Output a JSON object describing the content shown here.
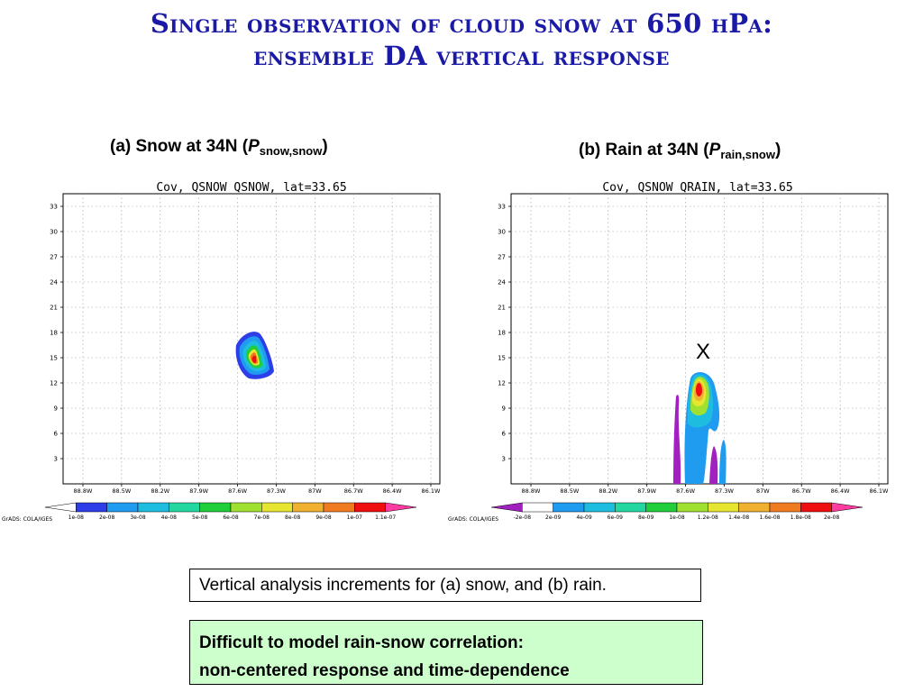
{
  "title": {
    "line1": "Single observation of cloud snow at 650 hPa:",
    "line2": "ensemble DA vertical response"
  },
  "panels": [
    {
      "heading": {
        "prefix": "(a) Snow at 34N (",
        "var": "P",
        "sub": "snow,snow",
        "suffix": ")"
      },
      "plot_title": "Cov, QSNOW QSNOW, lat=33.65",
      "colorbar": {
        "labels": [
          "1e-08",
          "2e-08",
          "3e-08",
          "4e-08",
          "5e-08",
          "6e-08",
          "7e-08",
          "8e-08",
          "9e-08",
          "1e-07",
          "1.1e-07"
        ],
        "colors": [
          "#ffffff",
          "#2d3de8",
          "#1f9bf0",
          "#1ebde0",
          "#22d8a0",
          "#1fce3a",
          "#a0e030",
          "#e6e630",
          "#f0b030",
          "#f07a20",
          "#ee1010",
          "#ff3aa0"
        ]
      },
      "marker": ""
    },
    {
      "heading": {
        "prefix": "(b) Rain at 34N (",
        "var": "P",
        "sub": "rain,snow",
        "suffix": ")"
      },
      "plot_title": "Cov, QSNOW QRAIN, lat=33.65",
      "colorbar": {
        "labels": [
          "-2e-08",
          "2e-09",
          "4e-09",
          "6e-09",
          "8e-09",
          "1e-08",
          "1.2e-08",
          "1.4e-08",
          "1.6e-08",
          "1.8e-08",
          "2e-08"
        ],
        "colors": [
          "#a020c0",
          "#ffffff",
          "#1f9bf0",
          "#1ebde0",
          "#22d8a0",
          "#1fce3a",
          "#a0e030",
          "#e6e630",
          "#f0b030",
          "#f07a20",
          "#ee1010",
          "#ff3aa0"
        ]
      },
      "marker": "X"
    }
  ],
  "axes": {
    "y_ticks": [
      3,
      6,
      9,
      12,
      15,
      18,
      21,
      24,
      27,
      30,
      33
    ],
    "x_ticks": [
      "88.8W",
      "88.5W",
      "88.2W",
      "87.9W",
      "87.6W",
      "87.3W",
      "87W",
      "86.7W",
      "86.4W",
      "86.1W"
    ]
  },
  "grads_credit": "GrADS: COLA/IGES",
  "caption": "Vertical analysis increments for (a) snow, and (b) rain.",
  "note": {
    "line1": "Difficult to model rain-snow correlation:",
    "line2": "non-centered response and time-dependence"
  }
}
